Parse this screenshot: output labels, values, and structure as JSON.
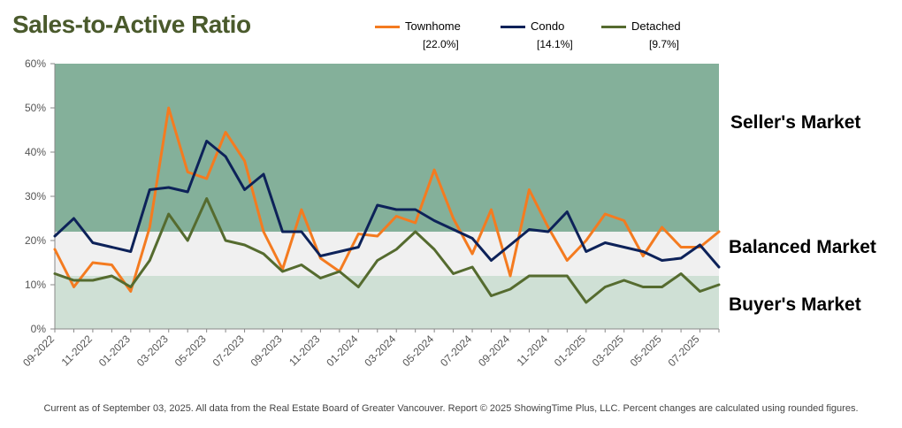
{
  "title": "Sales-to-Active Ratio",
  "footer": "Current as of September 03, 2025. All data from the Real Estate Board of Greater Vancouver.  Report © 2025 ShowingTime Plus, LLC. Percent changes are calculated using rounded figures.",
  "zones": {
    "seller": "Seller's Market",
    "balanced": "Balanced Market",
    "buyer": "Buyer's Market"
  },
  "legend": [
    {
      "name": "Townhome",
      "value": "[22.0%]",
      "color": "#f47b20"
    },
    {
      "name": "Condo",
      "value": "[14.1%]",
      "color": "#0d2259"
    },
    {
      "name": "Detached",
      "value": "[9.7%]",
      "color": "#556b2f"
    }
  ],
  "chart_data": {
    "type": "line",
    "title": "Sales-to-Active Ratio",
    "x": [
      "09-2022",
      "10-2022",
      "11-2022",
      "12-2022",
      "01-2023",
      "02-2023",
      "03-2023",
      "04-2023",
      "05-2023",
      "06-2023",
      "07-2023",
      "08-2023",
      "09-2023",
      "10-2023",
      "11-2023",
      "12-2023",
      "01-2024",
      "02-2024",
      "03-2024",
      "04-2024",
      "05-2024",
      "06-2024",
      "07-2024",
      "08-2024",
      "09-2024",
      "10-2024",
      "11-2024",
      "12-2024",
      "01-2025",
      "02-2025",
      "03-2025",
      "04-2025",
      "05-2025",
      "06-2025",
      "07-2025",
      "08-2025"
    ],
    "xtick_labels": [
      "09-2022",
      "11-2022",
      "01-2023",
      "03-2023",
      "05-2023",
      "07-2023",
      "09-2023",
      "11-2023",
      "01-2024",
      "03-2024",
      "05-2024",
      "07-2024",
      "09-2024",
      "11-2024",
      "01-2025",
      "03-2025",
      "05-2025",
      "07-2025"
    ],
    "ylim": [
      0,
      60
    ],
    "yticks": [
      "0%",
      "10%",
      "20%",
      "30%",
      "40%",
      "50%",
      "60%"
    ],
    "zones": [
      {
        "label": "Buyer's Market",
        "from": 0,
        "to": 12,
        "color": "#cfe0d5"
      },
      {
        "label": "Balanced Market",
        "from": 12,
        "to": 22,
        "color": "#f0f0f0"
      },
      {
        "label": "Seller's Market",
        "from": 22,
        "to": 60,
        "color": "#84b09a"
      }
    ],
    "series": [
      {
        "name": "Townhome",
        "color": "#f47b20",
        "values": [
          18,
          9.5,
          15,
          14.5,
          8.5,
          23,
          50,
          35.5,
          34,
          44.5,
          38,
          22,
          13.5,
          27,
          16,
          13,
          21.5,
          21,
          25.5,
          24,
          36,
          25,
          17,
          27,
          12,
          31.5,
          23,
          15.5,
          20,
          26,
          24.5,
          16.5,
          23,
          18.5,
          18.5,
          22
        ]
      },
      {
        "name": "Condo",
        "color": "#0d2259",
        "values": [
          21,
          25,
          19.5,
          18.5,
          17.5,
          31.5,
          32,
          31,
          42.5,
          39,
          31.5,
          35,
          22,
          22,
          16.5,
          17.5,
          18.5,
          28,
          27,
          27,
          24.5,
          22.5,
          20.5,
          15.5,
          19,
          22.5,
          22,
          26.5,
          17.5,
          19.5,
          18.5,
          17.5,
          15.5,
          16,
          19,
          14
        ]
      },
      {
        "name": "Detached",
        "color": "#556b2f",
        "values": [
          12.5,
          11,
          11,
          12,
          9.5,
          15.5,
          26,
          20,
          29.5,
          20,
          19,
          17,
          13,
          14.5,
          11.5,
          13,
          9.5,
          15.5,
          18,
          22,
          18,
          12.5,
          14,
          7.5,
          9,
          12,
          12,
          12,
          6,
          9.5,
          11,
          9.5,
          9.5,
          12.5,
          8.5,
          10
        ]
      }
    ]
  }
}
